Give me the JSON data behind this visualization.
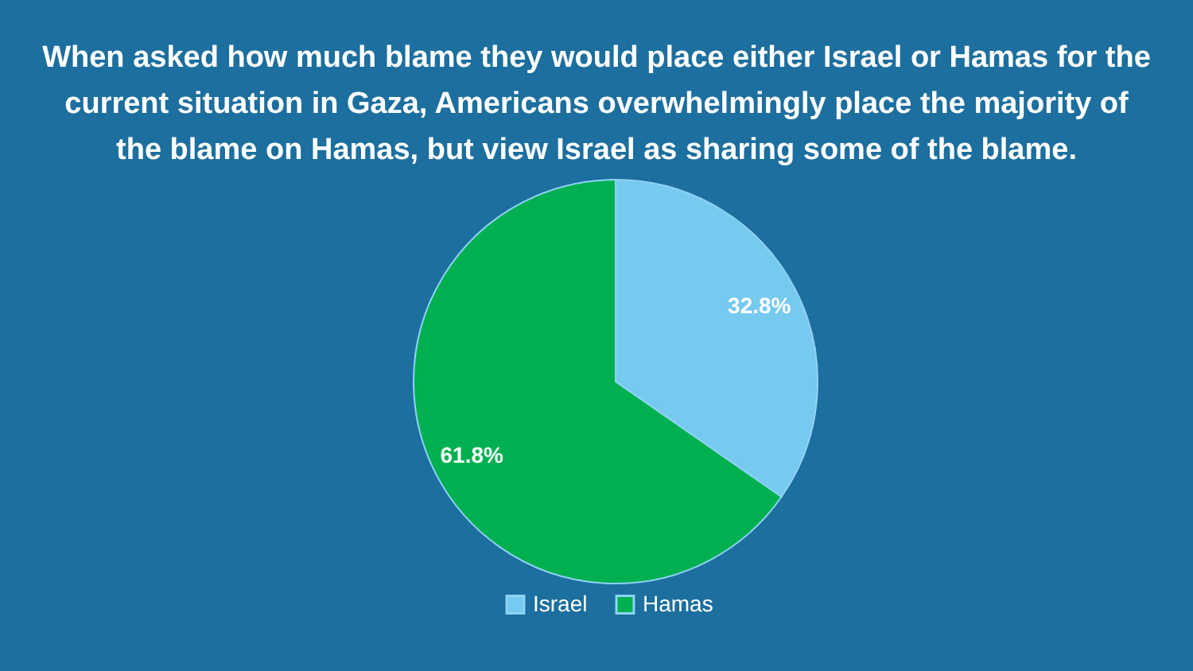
{
  "chart_data": {
    "type": "pie",
    "title": "When asked how much blame they would place either Israel or Hamas for the current situation in Gaza, Americans overwhelmingly place the majority of the blame on Hamas, but view Israel as sharing some of the blame.",
    "categories": [
      "Israel",
      "Hamas"
    ],
    "values": [
      32.8,
      61.8
    ],
    "colors": [
      "#76c9ef",
      "#00b050"
    ],
    "value_labels": [
      "32.8%",
      "61.8%"
    ],
    "legend": "bottom"
  }
}
